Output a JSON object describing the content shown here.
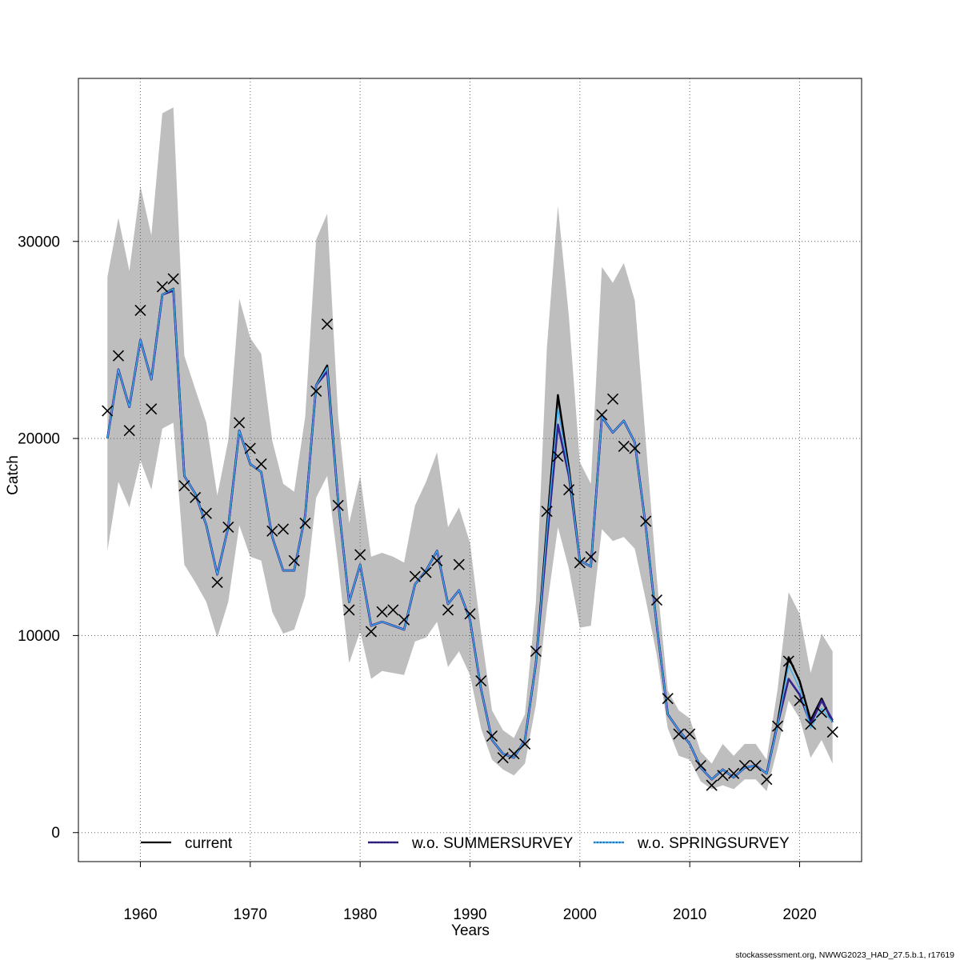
{
  "chart_data": {
    "type": "line",
    "xlabel": "Years",
    "ylabel": "Catch",
    "xlim": [
      1954.36,
      2025.64
    ],
    "ylim": [
      -1472,
      38272
    ],
    "x_ticks": [
      1960,
      1970,
      1980,
      1990,
      2000,
      2010,
      2020
    ],
    "x_tick_labels": [
      "1960",
      "1970",
      "1980",
      "1990",
      "2000",
      "2010",
      "2020"
    ],
    "y_ticks": [
      0,
      10000,
      20000,
      30000
    ],
    "y_tick_labels": [
      "0",
      "10000",
      "20000",
      "30000"
    ],
    "grid": true,
    "legend_position": "bottom",
    "x": [
      1957,
      1958,
      1959,
      1960,
      1961,
      1962,
      1963,
      1964,
      1965,
      1966,
      1967,
      1968,
      1969,
      1970,
      1971,
      1972,
      1973,
      1974,
      1975,
      1976,
      1977,
      1978,
      1979,
      1980,
      1981,
      1982,
      1983,
      1984,
      1985,
      1986,
      1987,
      1988,
      1989,
      1990,
      1991,
      1992,
      1993,
      1994,
      1995,
      1996,
      1997,
      1998,
      1999,
      2000,
      2001,
      2002,
      2003,
      2004,
      2005,
      2006,
      2007,
      2008,
      2009,
      2010,
      2011,
      2012,
      2013,
      2014,
      2015,
      2016,
      2017,
      2018,
      2019,
      2020,
      2021,
      2022,
      2023
    ],
    "series": [
      {
        "name": "current",
        "color": "#000000",
        "values": [
          20000,
          23500,
          21600,
          25000,
          23000,
          27300,
          27600,
          18100,
          17200,
          15600,
          13100,
          15500,
          20400,
          18700,
          18300,
          15000,
          13300,
          13300,
          16100,
          22700,
          23700,
          16800,
          11700,
          13600,
          10500,
          10700,
          10500,
          10300,
          12600,
          13300,
          14300,
          11600,
          12300,
          10800,
          7300,
          4700,
          4000,
          3800,
          4700,
          8600,
          15500,
          22200,
          18500,
          13800,
          13500,
          21100,
          20300,
          20900,
          19800,
          15500,
          10500,
          6000,
          5200,
          4500,
          3300,
          2700,
          3200,
          2800,
          3300,
          3400,
          3000,
          5600,
          8900,
          7700,
          5700,
          6800,
          5600
        ]
      },
      {
        "name": "w.o. SUMMERSURVEY",
        "color": "#32238f",
        "values": [
          20000,
          23500,
          21600,
          25000,
          23000,
          27300,
          27500,
          18100,
          17200,
          15600,
          13100,
          15500,
          20400,
          18700,
          18300,
          15000,
          13300,
          13300,
          16100,
          22700,
          23400,
          16800,
          11700,
          13600,
          10500,
          10700,
          10500,
          10300,
          12600,
          13300,
          14300,
          11600,
          12300,
          10800,
          7300,
          4700,
          4000,
          3800,
          4700,
          8600,
          14800,
          20700,
          18100,
          13800,
          13500,
          21100,
          20300,
          20900,
          19800,
          15500,
          10500,
          6000,
          5200,
          4500,
          3300,
          2700,
          3200,
          2800,
          3300,
          3400,
          3000,
          5500,
          7800,
          7000,
          5500,
          6700,
          5700
        ]
      },
      {
        "name": "w.o. SPRINGSURVEY",
        "color": "#3fb0f0",
        "values": [
          20000,
          23500,
          21600,
          25000,
          23000,
          27300,
          27600,
          18100,
          17200,
          15600,
          13100,
          15500,
          20400,
          18700,
          18300,
          15000,
          13300,
          13300,
          16100,
          22700,
          23600,
          16800,
          11700,
          13600,
          10500,
          10700,
          10500,
          10300,
          12600,
          13300,
          14300,
          11600,
          12300,
          10800,
          7300,
          4700,
          4000,
          3800,
          4700,
          8600,
          15300,
          21500,
          18300,
          13800,
          13500,
          21100,
          20300,
          20900,
          19800,
          15500,
          10500,
          6000,
          5200,
          4500,
          3300,
          2700,
          3200,
          2800,
          3300,
          3400,
          3000,
          5500,
          8500,
          7300,
          5300,
          6300,
          5600
        ]
      }
    ],
    "band": {
      "color": "#bebebe",
      "upper": [
        28200,
        31200,
        28500,
        32800,
        30300,
        36500,
        36800,
        24200,
        22500,
        20800,
        17100,
        19900,
        27100,
        25100,
        24300,
        19900,
        17700,
        17300,
        21100,
        30100,
        31400,
        21100,
        15700,
        18100,
        14000,
        14200,
        14000,
        13700,
        16600,
        17800,
        19300,
        15500,
        16500,
        14700,
        10200,
        6200,
        5200,
        4800,
        6000,
        11700,
        24600,
        31800,
        26200,
        18800,
        17700,
        28700,
        27900,
        28900,
        27000,
        19800,
        12900,
        7200,
        6200,
        5800,
        4100,
        3500,
        4500,
        3900,
        4500,
        4500,
        3700,
        7300,
        12200,
        11100,
        8100,
        10100,
        9200
      ],
      "lower": [
        14300,
        17800,
        16500,
        18900,
        17400,
        20500,
        20800,
        13600,
        12700,
        11700,
        9900,
        11700,
        15600,
        14000,
        13800,
        11200,
        10100,
        10300,
        12000,
        17000,
        18100,
        13600,
        8600,
        10200,
        7800,
        8200,
        8100,
        8000,
        9700,
        9900,
        10700,
        8400,
        9200,
        8000,
        5300,
        3700,
        3200,
        2900,
        3500,
        6500,
        11400,
        15500,
        13400,
        10400,
        10500,
        15400,
        14800,
        15000,
        14400,
        11800,
        9000,
        5300,
        3900,
        3700,
        2600,
        2200,
        2400,
        2200,
        2700,
        2700,
        2100,
        4300,
        6700,
        5800,
        3800,
        4700,
        3500
      ]
    },
    "points": {
      "marker": "x",
      "color": "#000000",
      "values": [
        21400,
        24200,
        20400,
        26500,
        21500,
        27700,
        28100,
        17600,
        17000,
        16200,
        12700,
        15500,
        20800,
        19500,
        18700,
        15300,
        15400,
        13800,
        15700,
        22400,
        25800,
        16600,
        11300,
        14100,
        10200,
        11200,
        11300,
        10800,
        13000,
        13200,
        13800,
        11300,
        13600,
        11100,
        7700,
        4900,
        3800,
        4000,
        4500,
        9200,
        16300,
        19100,
        17400,
        13700,
        14000,
        21200,
        22000,
        19600,
        19500,
        15800,
        11800,
        6800,
        5000,
        5000,
        3400,
        2400,
        2900,
        3000,
        3400,
        3400,
        2700,
        5400,
        8700,
        6700,
        5500,
        6100,
        5100
      ]
    }
  },
  "footer": "stockassessment.org, NWWG2023_HAD_27.5.b.1, r17619"
}
